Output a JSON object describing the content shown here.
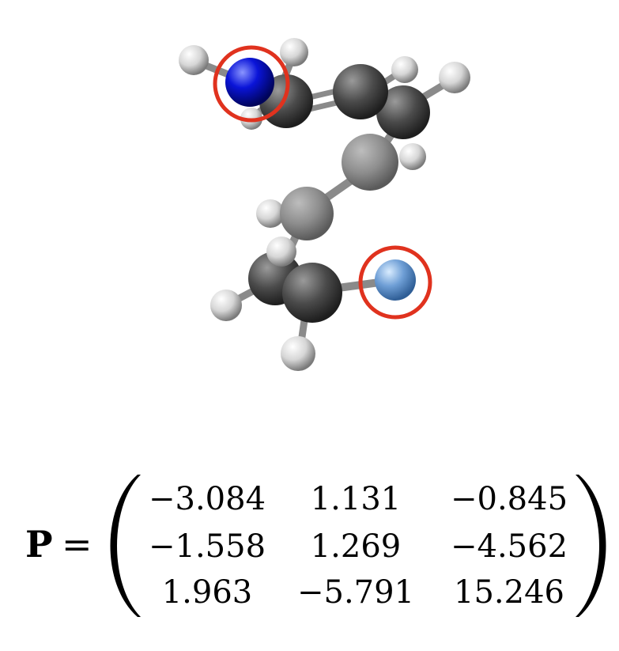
{
  "molecule": {
    "atom_colors": {
      "hydrogen": "#dcdcdc",
      "carbon": "#4f4f4f",
      "nitrogen": "#0a14d8",
      "light_blue_atom": "#6f9fd6"
    },
    "highlight_color": "#e0321e",
    "bond_color": "#8a8a8a"
  },
  "equation": {
    "lhs": "P",
    "equals": "=",
    "matrix_rows": [
      [
        "−3.084",
        "1.131",
        "−0.845"
      ],
      [
        "−1.558",
        "1.269",
        "−4.562"
      ],
      [
        "1.963",
        "−5.791",
        "15.246"
      ]
    ]
  }
}
